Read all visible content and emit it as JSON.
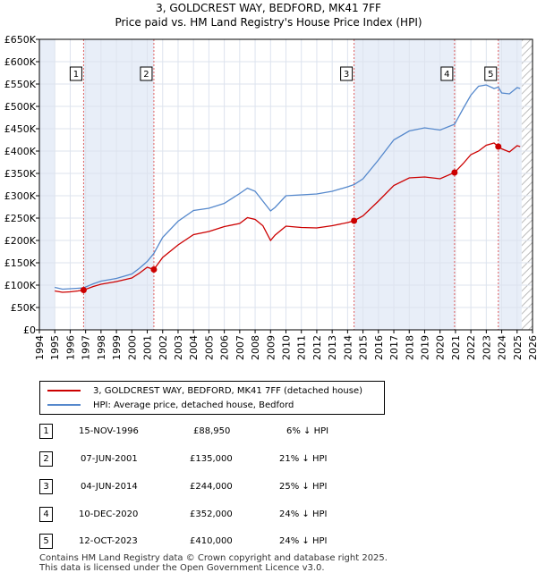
{
  "title": {
    "line1": "3, GOLDCREST WAY, BEDFORD, MK41 7FF",
    "line2": "Price paid vs. HM Land Registry's House Price Index (HPI)"
  },
  "colors": {
    "price_paid": "#cc0000",
    "hpi": "#5588cc",
    "shade": "#e8eef8",
    "marker_line": "#e06060"
  },
  "chart_data": {
    "type": "line",
    "title": "Price paid vs. HM Land Registry's House Price Index (HPI)",
    "xlabel": "",
    "ylabel": "",
    "xlim": [
      1994,
      2026
    ],
    "ylim": [
      0,
      650000
    ],
    "y_ticks": [
      0,
      50000,
      100000,
      150000,
      200000,
      250000,
      300000,
      350000,
      400000,
      450000,
      500000,
      550000,
      600000,
      650000
    ],
    "y_tick_labels": [
      "£0",
      "£50K",
      "£100K",
      "£150K",
      "£200K",
      "£250K",
      "£300K",
      "£350K",
      "£400K",
      "£450K",
      "£500K",
      "£550K",
      "£600K",
      "£650K"
    ],
    "x_ticks": [
      1994,
      1995,
      1996,
      1997,
      1998,
      1999,
      2000,
      2001,
      2002,
      2003,
      2004,
      2005,
      2006,
      2007,
      2008,
      2009,
      2010,
      2011,
      2012,
      2013,
      2014,
      2015,
      2016,
      2017,
      2018,
      2019,
      2020,
      2021,
      2022,
      2023,
      2024,
      2025,
      2026
    ],
    "x_tick_labels": [
      "1994",
      "1995",
      "1996",
      "1997",
      "1998",
      "1999",
      "2000",
      "2001",
      "2002",
      "2003",
      "2004",
      "2005",
      "2006",
      "2007",
      "2008",
      "2009",
      "2010",
      "2011",
      "2012",
      "2013",
      "2014",
      "2015",
      "2016",
      "2017",
      "2018",
      "2019",
      "2020",
      "2021",
      "2022",
      "2023",
      "2024",
      "2025",
      "2026"
    ],
    "shaded_ranges": [
      [
        1994,
        1995
      ],
      [
        1996.87,
        2001.43
      ],
      [
        2014.42,
        2020.94
      ],
      [
        2023.78,
        2025.3
      ]
    ],
    "hatched_ranges": [
      [
        2025.3,
        2026
      ]
    ],
    "series": [
      {
        "name": "3, GOLDCREST WAY, BEDFORD, MK41 7FF (detached house)",
        "color": "#cc0000",
        "x": [
          1995.0,
          1995.5,
          1996.0,
          1996.5,
          1996.87,
          1997.5,
          1998.0,
          1999.0,
          2000.0,
          2000.5,
          2001.0,
          2001.43,
          2002.0,
          2003.0,
          2004.0,
          2005.0,
          2006.0,
          2007.0,
          2007.5,
          2008.0,
          2008.5,
          2009.0,
          2009.3,
          2010.0,
          2011.0,
          2012.0,
          2013.0,
          2014.0,
          2014.42,
          2015.0,
          2016.0,
          2017.0,
          2018.0,
          2019.0,
          2020.0,
          2020.94,
          2021.5,
          2022.0,
          2022.5,
          2023.0,
          2023.5,
          2023.78,
          2024.0,
          2024.5,
          2025.0,
          2025.2
        ],
        "y": [
          87000,
          84000,
          85000,
          87000,
          88950,
          97000,
          102000,
          108000,
          116000,
          127000,
          140000,
          135000,
          162000,
          190000,
          213000,
          220000,
          231000,
          238000,
          251000,
          247000,
          233000,
          200000,
          212000,
          232000,
          229000,
          228000,
          233000,
          240000,
          244000,
          255000,
          288000,
          323000,
          340000,
          342000,
          338000,
          352000,
          372000,
          392000,
          400000,
          413000,
          418000,
          410000,
          405000,
          398000,
          412000,
          410000
        ]
      },
      {
        "name": "HPI: Average price, detached house, Bedford",
        "color": "#5588cc",
        "x": [
          1995.0,
          1995.5,
          1996.0,
          1996.5,
          1996.87,
          1997.5,
          1998.0,
          1999.0,
          2000.0,
          2000.5,
          2001.0,
          2001.43,
          2002.0,
          2003.0,
          2004.0,
          2005.0,
          2006.0,
          2007.0,
          2007.5,
          2008.0,
          2008.5,
          2009.0,
          2009.3,
          2010.0,
          2011.0,
          2012.0,
          2013.0,
          2014.0,
          2014.42,
          2015.0,
          2016.0,
          2017.0,
          2018.0,
          2019.0,
          2020.0,
          2020.94,
          2021.5,
          2022.0,
          2022.5,
          2023.0,
          2023.5,
          2023.78,
          2024.0,
          2024.5,
          2025.0,
          2025.2
        ],
        "y": [
          95000,
          91000,
          92000,
          93000,
          94000,
          103000,
          109000,
          115000,
          125000,
          138000,
          153000,
          171000,
          207000,
          243000,
          267000,
          272000,
          283000,
          305000,
          317000,
          310000,
          288000,
          266000,
          274000,
          300000,
          302000,
          304000,
          310000,
          320000,
          325000,
          338000,
          380000,
          425000,
          445000,
          452000,
          447000,
          460000,
          495000,
          525000,
          545000,
          548000,
          540000,
          543000,
          530000,
          528000,
          542000,
          540000
        ]
      }
    ],
    "sale_markers": [
      {
        "label": "1",
        "x": 1996.87,
        "y": 88950
      },
      {
        "label": "2",
        "x": 2001.43,
        "y": 135000
      },
      {
        "label": "3",
        "x": 2014.42,
        "y": 244000
      },
      {
        "label": "4",
        "x": 2020.94,
        "y": 352000
      },
      {
        "label": "5",
        "x": 2023.78,
        "y": 410000
      }
    ]
  },
  "legend": {
    "price_paid_label": "3, GOLDCREST WAY, BEDFORD, MK41 7FF (detached house)",
    "hpi_label": "HPI: Average price, detached house, Bedford"
  },
  "sales": [
    {
      "num": "1",
      "date": "15-NOV-1996",
      "price": "£88,950",
      "hpi": "6% ↓ HPI"
    },
    {
      "num": "2",
      "date": "07-JUN-2001",
      "price": "£135,000",
      "hpi": "21% ↓ HPI"
    },
    {
      "num": "3",
      "date": "04-JUN-2014",
      "price": "£244,000",
      "hpi": "25% ↓ HPI"
    },
    {
      "num": "4",
      "date": "10-DEC-2020",
      "price": "£352,000",
      "hpi": "24% ↓ HPI"
    },
    {
      "num": "5",
      "date": "12-OCT-2023",
      "price": "£410,000",
      "hpi": "24% ↓ HPI"
    }
  ],
  "footer": {
    "line1": "Contains HM Land Registry data © Crown copyright and database right 2025.",
    "line2": "This data is licensed under the Open Government Licence v3.0."
  }
}
